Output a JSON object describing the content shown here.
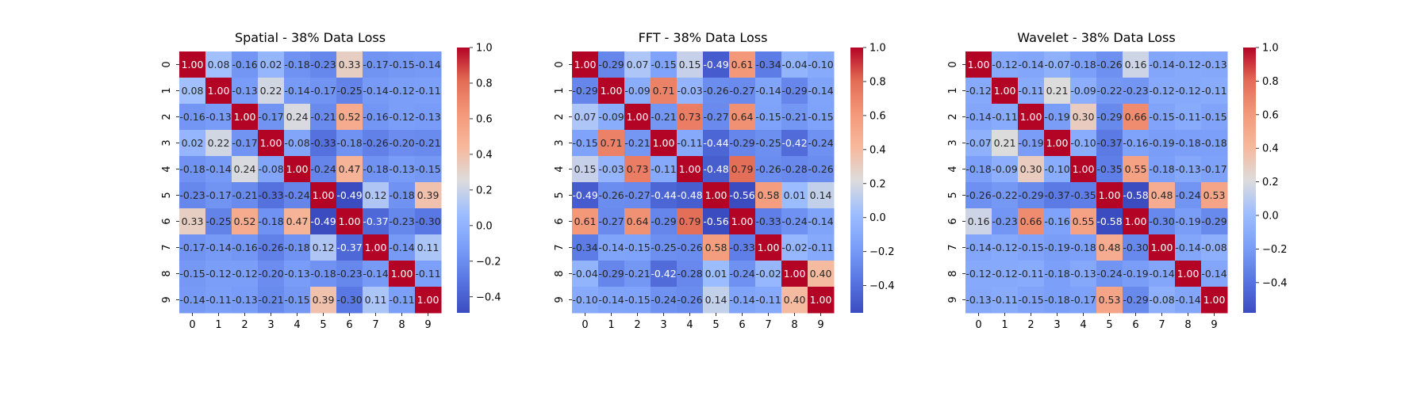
{
  "chart_data": [
    {
      "type": "heatmap",
      "title": "Spatial - 38% Data Loss",
      "x_ticks": [
        "0",
        "1",
        "2",
        "3",
        "4",
        "5",
        "6",
        "7",
        "8",
        "9"
      ],
      "y_ticks": [
        "0",
        "1",
        "2",
        "3",
        "4",
        "5",
        "6",
        "7",
        "8",
        "9"
      ],
      "values": [
        [
          1.0,
          0.08,
          -0.16,
          0.02,
          -0.18,
          -0.23,
          0.33,
          -0.17,
          -0.15,
          -0.14
        ],
        [
          0.08,
          1.0,
          -0.13,
          0.22,
          -0.14,
          -0.17,
          -0.25,
          -0.14,
          -0.12,
          -0.11
        ],
        [
          -0.16,
          -0.13,
          1.0,
          -0.17,
          0.24,
          -0.21,
          0.52,
          -0.16,
          -0.12,
          -0.13
        ],
        [
          0.02,
          0.22,
          -0.17,
          1.0,
          -0.08,
          -0.33,
          -0.18,
          -0.26,
          -0.2,
          -0.21
        ],
        [
          -0.18,
          -0.14,
          0.24,
          -0.08,
          1.0,
          -0.24,
          0.47,
          -0.18,
          -0.13,
          -0.15
        ],
        [
          -0.23,
          -0.17,
          -0.21,
          -0.33,
          -0.24,
          1.0,
          -0.49,
          0.12,
          -0.18,
          0.39
        ],
        [
          0.33,
          -0.25,
          0.52,
          -0.18,
          0.47,
          -0.49,
          1.0,
          -0.37,
          -0.23,
          -0.3
        ],
        [
          -0.17,
          -0.14,
          -0.16,
          -0.26,
          -0.18,
          0.12,
          -0.37,
          1.0,
          -0.14,
          0.11
        ],
        [
          -0.15,
          -0.12,
          -0.12,
          -0.2,
          -0.13,
          -0.18,
          -0.23,
          -0.14,
          1.0,
          -0.11
        ],
        [
          -0.14,
          -0.11,
          -0.13,
          -0.21,
          -0.15,
          0.39,
          -0.3,
          0.11,
          -0.11,
          1.0
        ]
      ],
      "colorbar": {
        "min": -0.49,
        "max": 1.0,
        "ticks": [
          "1.0",
          "0.8",
          "0.6",
          "0.4",
          "0.2",
          "0.0",
          "−0.2",
          "−0.4"
        ]
      }
    },
    {
      "type": "heatmap",
      "title": "FFT - 38% Data Loss",
      "x_ticks": [
        "0",
        "1",
        "2",
        "3",
        "4",
        "5",
        "6",
        "7",
        "8",
        "9"
      ],
      "y_ticks": [
        "0",
        "1",
        "2",
        "3",
        "4",
        "5",
        "6",
        "7",
        "8",
        "9"
      ],
      "values": [
        [
          1.0,
          -0.29,
          0.07,
          -0.15,
          0.15,
          -0.49,
          0.61,
          -0.34,
          -0.04,
          -0.1
        ],
        [
          -0.29,
          1.0,
          -0.09,
          0.71,
          -0.03,
          -0.26,
          -0.27,
          -0.14,
          -0.29,
          -0.14
        ],
        [
          0.07,
          -0.09,
          1.0,
          -0.21,
          0.73,
          -0.27,
          0.64,
          -0.15,
          -0.21,
          -0.15
        ],
        [
          -0.15,
          0.71,
          -0.21,
          1.0,
          -0.11,
          -0.44,
          -0.29,
          -0.25,
          -0.42,
          -0.24
        ],
        [
          0.15,
          -0.03,
          0.73,
          -0.11,
          1.0,
          -0.48,
          0.79,
          -0.26,
          -0.28,
          -0.26
        ],
        [
          -0.49,
          -0.26,
          -0.27,
          -0.44,
          -0.48,
          1.0,
          -0.56,
          0.58,
          0.01,
          0.14
        ],
        [
          0.61,
          -0.27,
          0.64,
          -0.29,
          0.79,
          -0.56,
          1.0,
          -0.33,
          -0.24,
          -0.14
        ],
        [
          -0.34,
          -0.14,
          -0.15,
          -0.25,
          -0.26,
          0.58,
          -0.33,
          1.0,
          -0.02,
          -0.11
        ],
        [
          -0.04,
          -0.29,
          -0.21,
          -0.42,
          -0.28,
          0.01,
          -0.24,
          -0.02,
          1.0,
          0.4
        ],
        [
          -0.1,
          -0.14,
          -0.15,
          -0.24,
          -0.26,
          0.14,
          -0.14,
          -0.11,
          0.4,
          1.0
        ]
      ],
      "colorbar": {
        "min": -0.56,
        "max": 1.0,
        "ticks": [
          "1.0",
          "0.8",
          "0.6",
          "0.4",
          "0.2",
          "0.0",
          "−0.2",
          "−0.4"
        ]
      }
    },
    {
      "type": "heatmap",
      "title": "Wavelet - 38% Data Loss",
      "x_ticks": [
        "0",
        "1",
        "2",
        "3",
        "4",
        "5",
        "6",
        "7",
        "8",
        "9"
      ],
      "y_ticks": [
        "0",
        "1",
        "2",
        "3",
        "4",
        "5",
        "6",
        "7",
        "8",
        "9"
      ],
      "values": [
        [
          1.0,
          -0.12,
          -0.14,
          -0.07,
          -0.18,
          -0.26,
          0.16,
          -0.14,
          -0.12,
          -0.13
        ],
        [
          -0.12,
          1.0,
          -0.11,
          0.21,
          -0.09,
          -0.22,
          -0.23,
          -0.12,
          -0.12,
          -0.11
        ],
        [
          -0.14,
          -0.11,
          1.0,
          -0.19,
          0.3,
          -0.29,
          0.66,
          -0.15,
          -0.11,
          -0.15
        ],
        [
          -0.07,
          0.21,
          -0.19,
          1.0,
          -0.1,
          -0.37,
          -0.16,
          -0.19,
          -0.18,
          -0.18
        ],
        [
          -0.18,
          -0.09,
          0.3,
          -0.1,
          1.0,
          -0.35,
          0.55,
          -0.18,
          -0.13,
          -0.17
        ],
        [
          -0.26,
          -0.22,
          -0.29,
          -0.37,
          -0.35,
          1.0,
          -0.58,
          0.48,
          -0.24,
          0.53
        ],
        [
          0.16,
          -0.23,
          0.66,
          -0.16,
          0.55,
          -0.58,
          1.0,
          -0.3,
          -0.19,
          -0.29
        ],
        [
          -0.14,
          -0.12,
          -0.15,
          -0.19,
          -0.18,
          0.48,
          -0.3,
          1.0,
          -0.14,
          -0.08
        ],
        [
          -0.12,
          -0.12,
          -0.11,
          -0.18,
          -0.13,
          -0.24,
          -0.19,
          -0.14,
          1.0,
          -0.14
        ],
        [
          -0.13,
          -0.11,
          -0.15,
          -0.18,
          -0.17,
          0.53,
          -0.29,
          -0.08,
          -0.14,
          1.0
        ]
      ],
      "colorbar": {
        "min": -0.58,
        "max": 1.0,
        "ticks": [
          "1.0",
          "0.8",
          "0.6",
          "0.4",
          "0.2",
          "0.0",
          "−0.2",
          "−0.4"
        ]
      }
    }
  ]
}
